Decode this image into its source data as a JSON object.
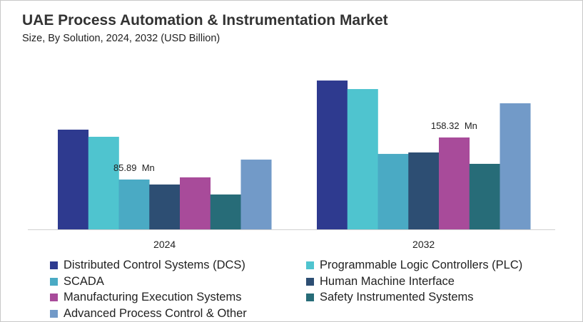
{
  "title": "UAE Process Automation & Instrumentation Market",
  "subtitle": "Size, By Solution, 2024, 2032 (USD Billion)",
  "chart_data": {
    "type": "bar",
    "title": "UAE Process Automation & Instrumentation Market",
    "subtitle": "Size, By Solution, 2024, 2032 (USD Billion)",
    "categories": [
      "2024",
      "2032"
    ],
    "series": [
      {
        "name": "Distributed Control Systems (DCS)",
        "color": "#2e3a8f",
        "values": [
          171.8,
          256.4
        ]
      },
      {
        "name": "Programmable Logic Controllers (PLC)",
        "color": "#4fc4cf",
        "values": [
          159.5,
          241.7
        ]
      },
      {
        "name": "SCADA",
        "color": "#4aaac4",
        "values": [
          85.89,
          130.0
        ]
      },
      {
        "name": "Human Machine Interface",
        "color": "#2d4e73",
        "values": [
          77.3,
          132.5
        ]
      },
      {
        "name": "Manufacturing Execution Systems",
        "color": "#a84b9a",
        "values": [
          89.6,
          158.32
        ]
      },
      {
        "name": "Safety Instrumented Systems",
        "color": "#276c78",
        "values": [
          60.1,
          112.9
        ]
      },
      {
        "name": "Advanced Process Control & Other",
        "color": "#729ac8",
        "values": [
          120.2,
          217.2
        ]
      }
    ],
    "data_labels": [
      {
        "series": "SCADA",
        "category": "2024",
        "text": "85.89  Mn"
      },
      {
        "series": "Manufacturing Execution Systems",
        "category": "2032",
        "text": "158.32  Mn"
      }
    ],
    "ylim": [
      0,
      260
    ],
    "grid": false,
    "y_axis_visible": false,
    "legend_position": "bottom"
  }
}
